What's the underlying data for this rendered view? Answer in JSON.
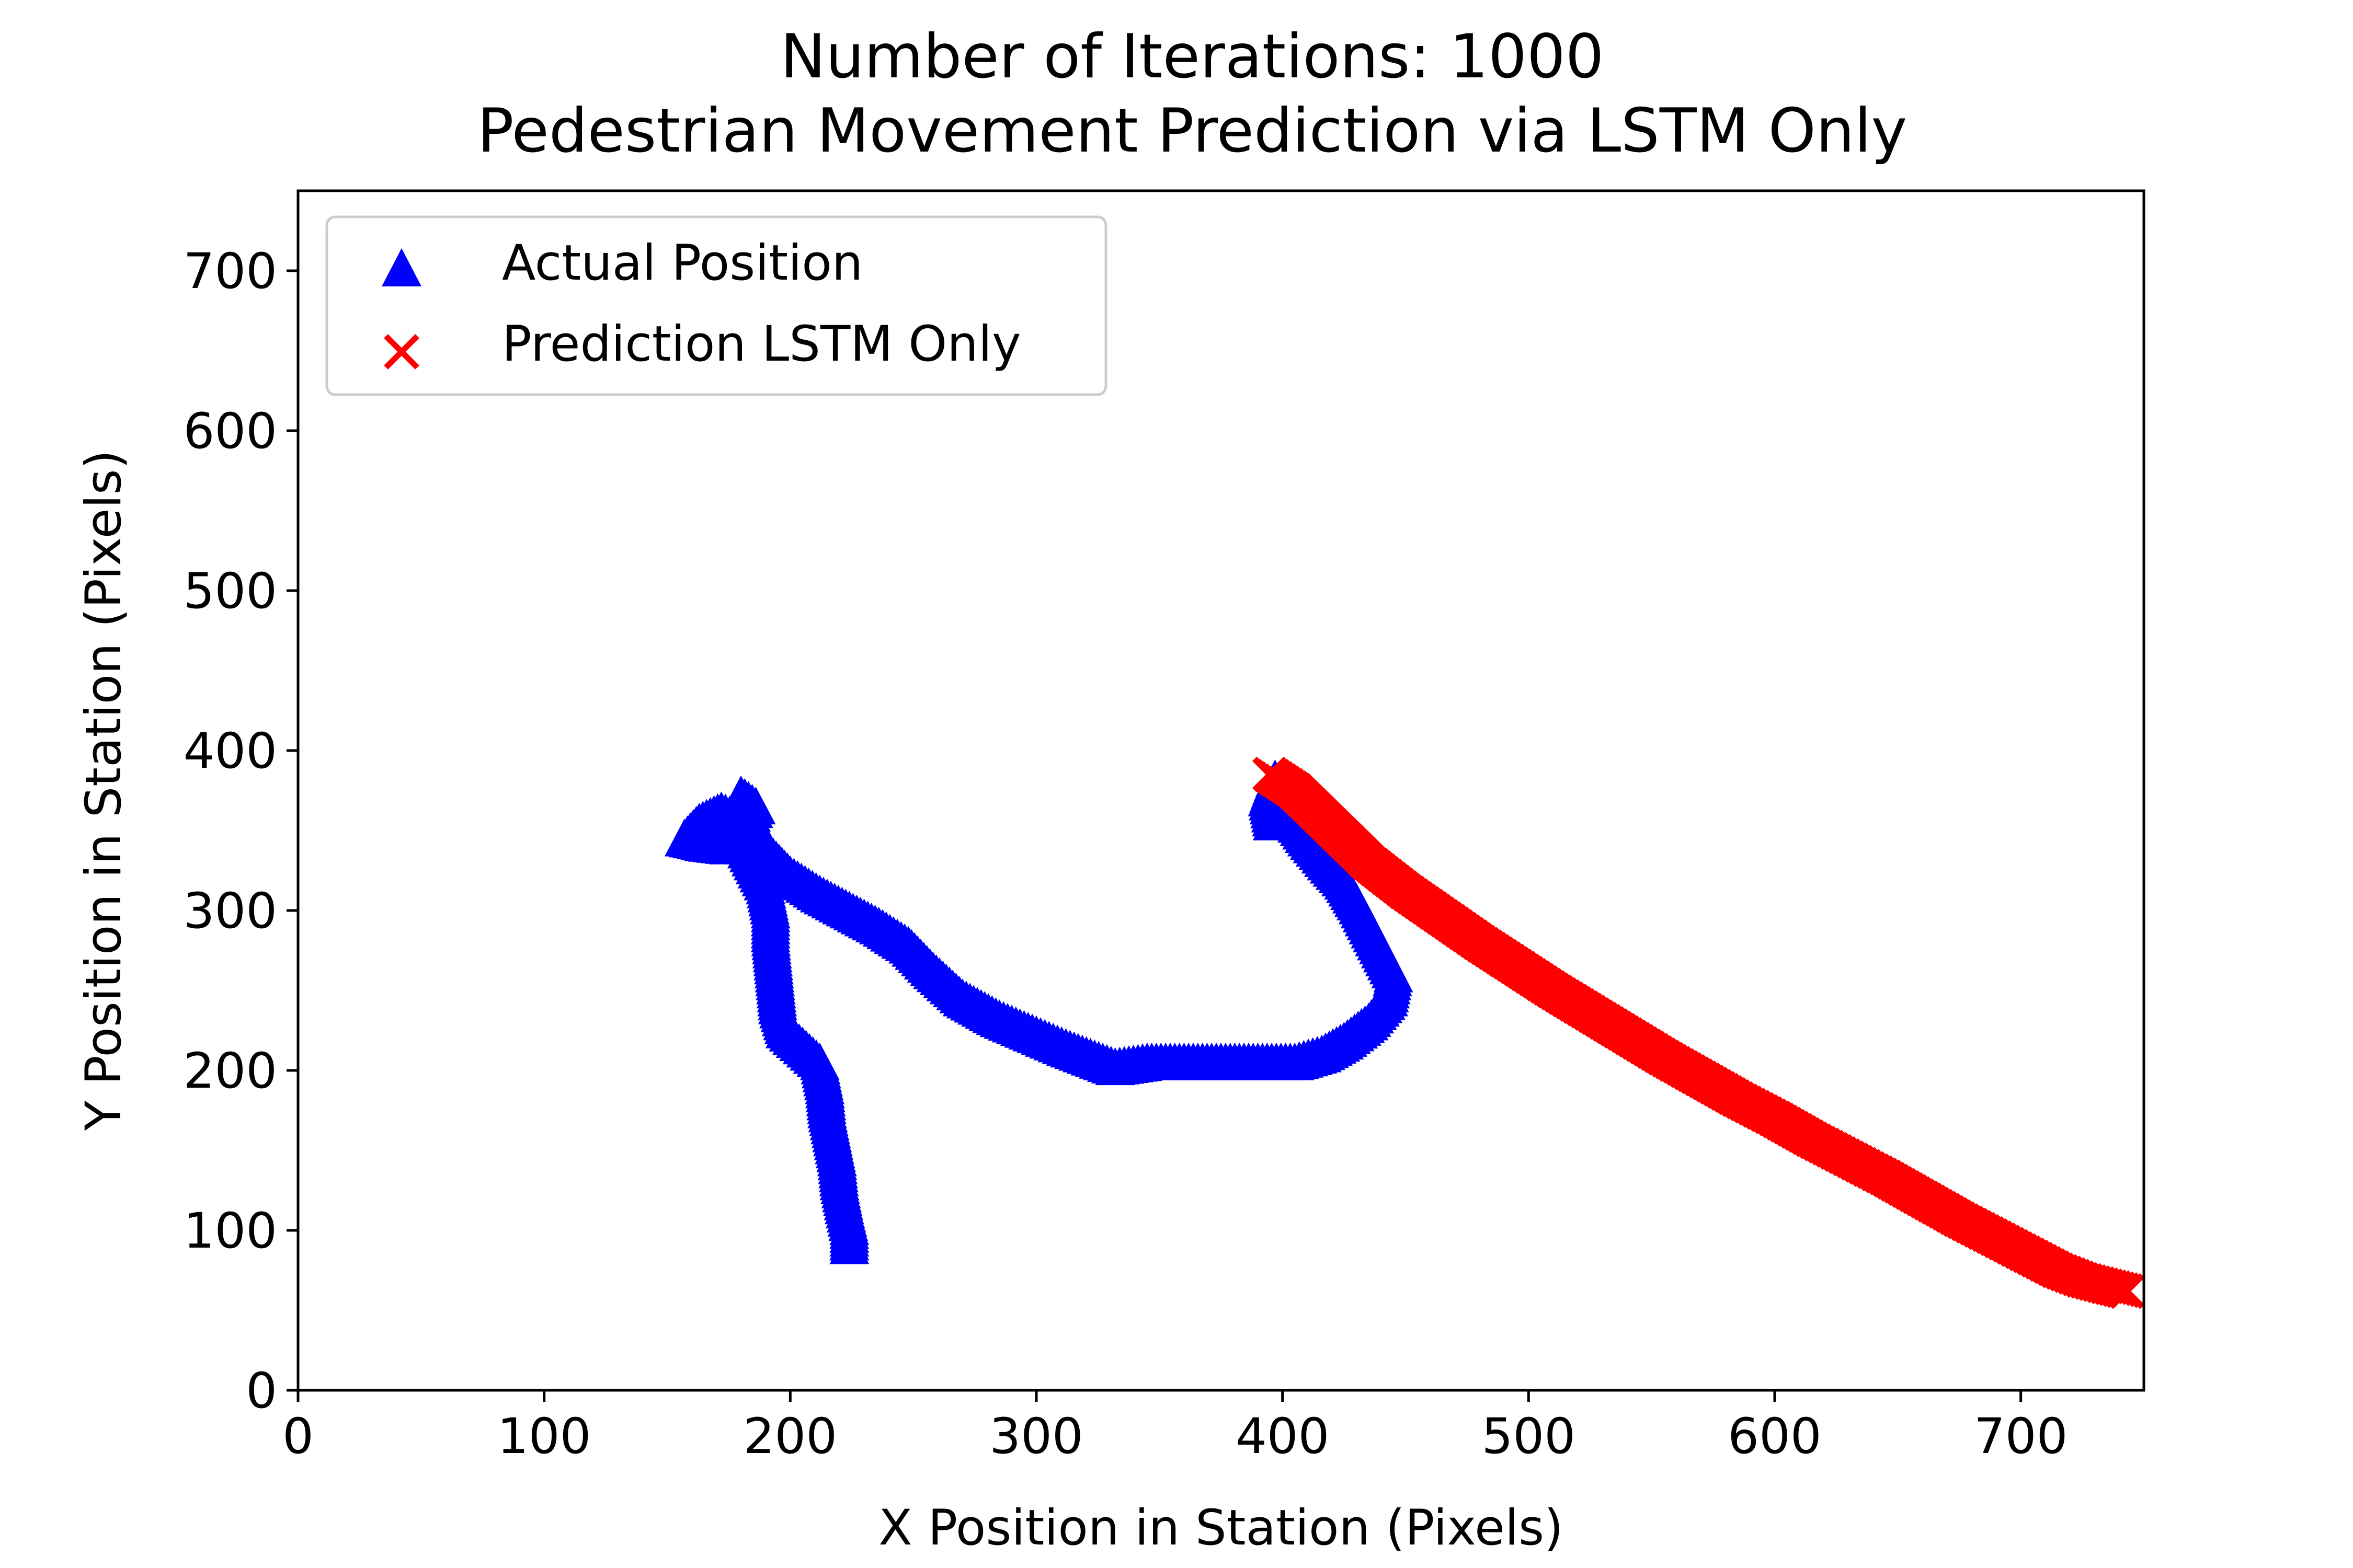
{
  "chart_data": {
    "type": "scatter",
    "title": "Number of Iterations: 1000",
    "subtitle": "Pedestrian Movement Prediction via LSTM Only",
    "xlabel": "X Position in Station (Pixels)",
    "ylabel": "Y Position in Station (Pixels)",
    "xlim": [
      0,
      750
    ],
    "ylim": [
      0,
      750
    ],
    "xticks": [
      0,
      100,
      200,
      300,
      400,
      500,
      600,
      700
    ],
    "yticks": [
      0,
      100,
      200,
      300,
      400,
      500,
      600,
      700
    ],
    "grid": false,
    "legend_position": "upper-left",
    "series": [
      {
        "name": "Actual Position",
        "marker": "triangle",
        "color": "#0000ff",
        "points": [
          [
            224,
            90
          ],
          [
            224,
            102
          ],
          [
            222,
            115
          ],
          [
            220,
            130
          ],
          [
            219,
            145
          ],
          [
            217,
            160
          ],
          [
            215,
            175
          ],
          [
            214,
            190
          ],
          [
            212,
            205
          ],
          [
            205,
            215
          ],
          [
            198,
            225
          ],
          [
            195,
            240
          ],
          [
            194,
            255
          ],
          [
            193,
            270
          ],
          [
            192,
            285
          ],
          [
            192,
            300
          ],
          [
            190,
            315
          ],
          [
            185,
            330
          ],
          [
            180,
            345
          ],
          [
            178,
            358
          ],
          [
            180,
            372
          ],
          [
            186,
            365
          ],
          [
            175,
            340
          ],
          [
            165,
            342
          ],
          [
            157,
            345
          ],
          [
            163,
            355
          ],
          [
            172,
            362
          ],
          [
            187,
            350
          ],
          [
            192,
            335
          ],
          [
            200,
            322
          ],
          [
            212,
            310
          ],
          [
            224,
            300
          ],
          [
            236,
            290
          ],
          [
            248,
            278
          ],
          [
            258,
            262
          ],
          [
            270,
            245
          ],
          [
            285,
            232
          ],
          [
            300,
            222
          ],
          [
            312,
            214
          ],
          [
            322,
            208
          ],
          [
            332,
            202
          ],
          [
            345,
            205
          ],
          [
            360,
            205
          ],
          [
            375,
            205
          ],
          [
            390,
            205
          ],
          [
            405,
            205
          ],
          [
            416,
            210
          ],
          [
            425,
            218
          ],
          [
            435,
            230
          ],
          [
            443,
            245
          ],
          [
            445,
            260
          ],
          [
            440,
            275
          ],
          [
            435,
            290
          ],
          [
            430,
            305
          ],
          [
            425,
            318
          ],
          [
            418,
            330
          ],
          [
            410,
            345
          ],
          [
            403,
            360
          ],
          [
            399,
            372
          ],
          [
            397,
            382
          ],
          [
            394,
            370
          ],
          [
            396,
            355
          ]
        ]
      },
      {
        "name": "Prediction LSTM Only",
        "marker": "x",
        "color": "#ff0000",
        "points": [
          [
            395,
            385
          ],
          [
            405,
            375
          ],
          [
            415,
            360
          ],
          [
            425,
            345
          ],
          [
            435,
            330
          ],
          [
            450,
            312
          ],
          [
            465,
            296
          ],
          [
            480,
            280
          ],
          [
            495,
            265
          ],
          [
            510,
            250
          ],
          [
            525,
            236
          ],
          [
            540,
            222
          ],
          [
            555,
            208
          ],
          [
            570,
            195
          ],
          [
            585,
            182
          ],
          [
            600,
            170
          ],
          [
            615,
            157
          ],
          [
            630,
            145
          ],
          [
            645,
            133
          ],
          [
            660,
            120
          ],
          [
            675,
            107
          ],
          [
            690,
            95
          ],
          [
            705,
            83
          ],
          [
            715,
            75
          ],
          [
            725,
            69
          ],
          [
            735,
            65
          ],
          [
            743,
            62
          ]
        ]
      }
    ]
  }
}
